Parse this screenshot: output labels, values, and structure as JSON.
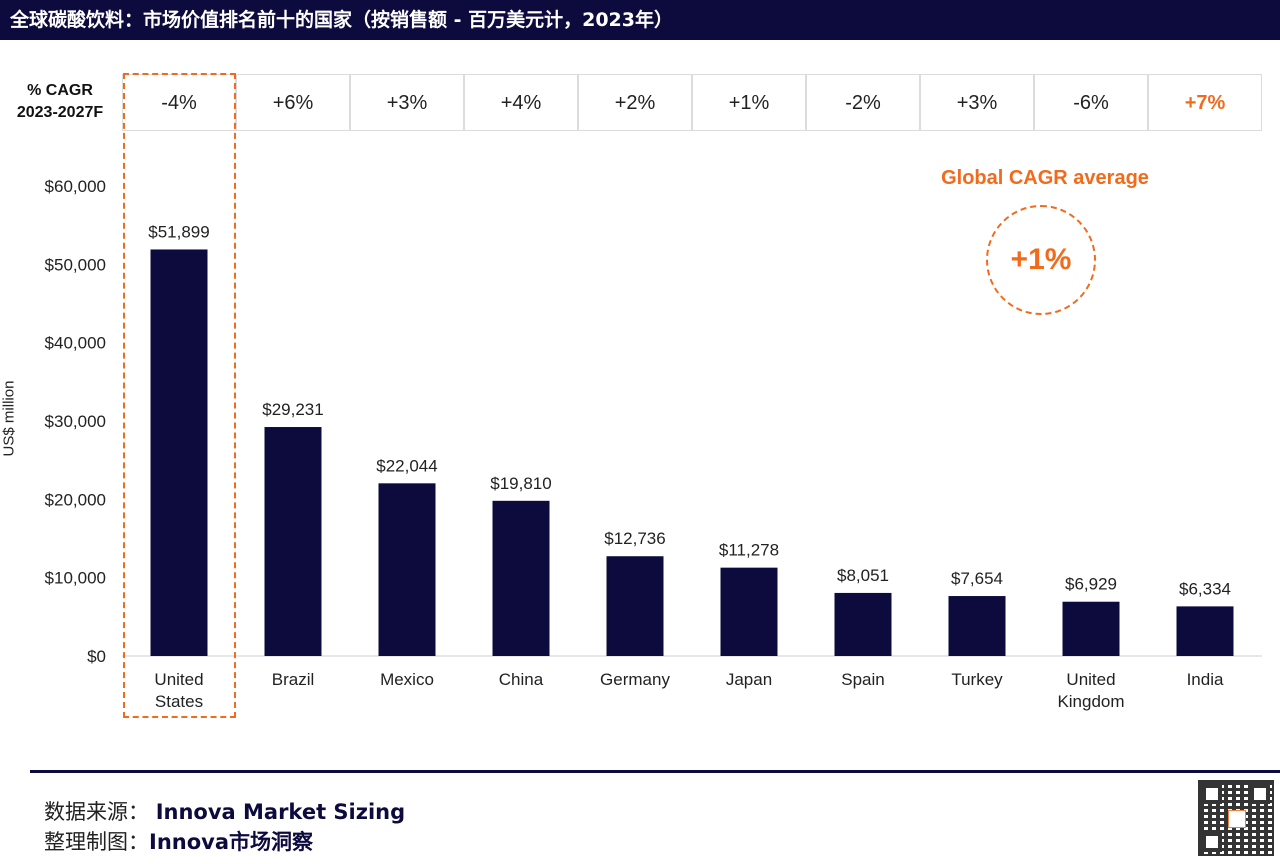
{
  "title": "全球碳酸饮料：市场价值排名前十的国家（按销售额 - 百万美元计，2023年）",
  "cagr_header": [
    "% CAGR",
    "2023-2027F"
  ],
  "cagr": [
    "-4%",
    "+6%",
    "+3%",
    "+4%",
    "+2%",
    "+1%",
    "-2%",
    "+3%",
    "-6%",
    "+7%"
  ],
  "global_avg": {
    "label": "Global CAGR average",
    "value": "+1%"
  },
  "colors": {
    "bar": "#0d0b3e",
    "accent": "#f26a1b",
    "title_bg": "#0d0b3e"
  },
  "chart_data": {
    "type": "bar",
    "categories": [
      [
        "United",
        "States"
      ],
      [
        "Brazil"
      ],
      [
        "Mexico"
      ],
      [
        "China"
      ],
      [
        "Germany"
      ],
      [
        "Japan"
      ],
      [
        "Spain"
      ],
      [
        "Turkey"
      ],
      [
        "United",
        "Kingdom"
      ],
      [
        "India"
      ]
    ],
    "values": [
      51899,
      29231,
      22044,
      19810,
      12736,
      11278,
      8051,
      7654,
      6929,
      6334
    ],
    "value_labels": [
      "$51,899",
      "$29,231",
      "$22,044",
      "$19,810",
      "$12,736",
      "$11,278",
      "$8,051",
      "$7,654",
      "$6,929",
      "$6,334"
    ],
    "ylabel": "US$ million",
    "yticks": [
      0,
      10000,
      20000,
      30000,
      40000,
      50000,
      60000
    ],
    "ytick_labels": [
      "$0",
      "$10,000",
      "$20,000",
      "$30,000",
      "$40,000",
      "$50,000",
      "$60,000"
    ],
    "ylim": [
      0,
      60000
    ],
    "grid": false
  },
  "footer": {
    "source_prefix": "数据来源：",
    "source": "Innova Market Sizing",
    "made_prefix": "整理制图：",
    "made": "Innova市场洞察"
  }
}
